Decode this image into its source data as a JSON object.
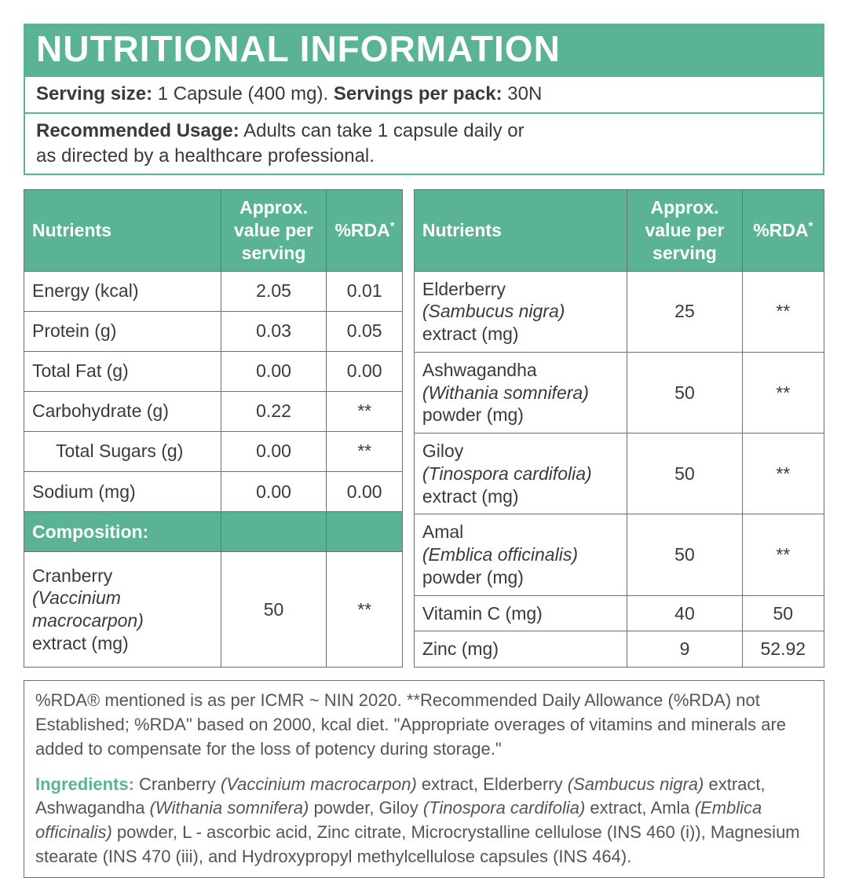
{
  "colors": {
    "accent": "#5ab394",
    "border": "#6f6f6f",
    "text": "#3a3a3a",
    "muted": "#555555",
    "white": "#ffffff"
  },
  "title": "NUTRITIONAL INFORMATION",
  "serving": {
    "size_label": "Serving size:",
    "size_value": " 1 Capsule (400 mg). ",
    "per_pack_label": "Servings per pack:",
    "per_pack_value": " 30N"
  },
  "usage": {
    "label": "Recommended Usage:",
    "text": " Adults can take 1 capsule daily or\nas directed by a healthcare professional."
  },
  "headers": {
    "nutrients": "Nutrients",
    "approx": "Approx. value per serving",
    "rda": "%RDA",
    "rda_sup": "*"
  },
  "composition_label": "Composition:",
  "left_rows": [
    {
      "name": "Energy (kcal)",
      "value": "2.05",
      "rda": "0.01"
    },
    {
      "name": "Protein (g)",
      "value": "0.03",
      "rda": "0.05"
    },
    {
      "name": "Total Fat (g)",
      "value": "0.00",
      "rda": "0.00"
    },
    {
      "name": "Carbohydrate (g)",
      "value": "0.22",
      "rda": "**"
    },
    {
      "name": "Total Sugars (g)",
      "indent": true,
      "value": "0.00",
      "rda": "**"
    },
    {
      "name": "Sodium (mg)",
      "value": "0.00",
      "rda": "0.00"
    }
  ],
  "left_comp": {
    "name": "Cranberry",
    "sci": "(Vaccinium macrocarpon)",
    "suffix": "extract (mg)",
    "value": "50",
    "rda": "**"
  },
  "right_rows": [
    {
      "name": "Elderberry",
      "sci": "(Sambucus nigra)",
      "suffix": "extract (mg)",
      "value": "25",
      "rda": "**"
    },
    {
      "name": "Ashwagandha",
      "sci": "(Withania somnifera)",
      "suffix": "powder (mg)",
      "value": "50",
      "rda": "**"
    },
    {
      "name": "Giloy",
      "sci": "(Tinospora cardifolia)",
      "suffix": "extract (mg)",
      "value": "50",
      "rda": "**"
    },
    {
      "name": "Amal",
      "sci": "(Emblica officinalis)",
      "suffix": "powder (mg)",
      "value": "50",
      "rda": "**"
    },
    {
      "name": "Vitamin C (mg)",
      "value": "40",
      "rda": "50"
    },
    {
      "name": "Zinc (mg)",
      "value": "9",
      "rda": "52.92"
    }
  ],
  "footnote": "%RDA® mentioned is as per ICMR ~ NIN 2020. **Recommended Daily Allowance (%RDA) not Established; %RDA\" based on 2000, kcal diet. \"Appropriate overages of vitamins and minerals are added to compensate for the loss of potency during storage.\"",
  "ingredients": {
    "label": "Ingredients:",
    "parts": [
      {
        "t": " Cranberry "
      },
      {
        "t": "(Vaccinium macrocarpon)",
        "i": true
      },
      {
        "t": " extract, Elderberry "
      },
      {
        "t": "(Sambucus nigra)",
        "i": true
      },
      {
        "t": " extract, Ashwagandha "
      },
      {
        "t": "(Withania somnifera)",
        "i": true
      },
      {
        "t": " powder, Giloy "
      },
      {
        "t": "(Tinospora cardifolia)",
        "i": true
      },
      {
        "t": " extract, Amla "
      },
      {
        "t": "(Emblica officinalis)",
        "i": true
      },
      {
        "t": " powder, L - ascorbic acid, Zinc citrate, Microcrystalline cellulose (INS 460 (i)), Magnesium stearate (INS 470 (iii), and Hydroxypropyl methylcellulose capsules (INS 464)."
      }
    ]
  }
}
